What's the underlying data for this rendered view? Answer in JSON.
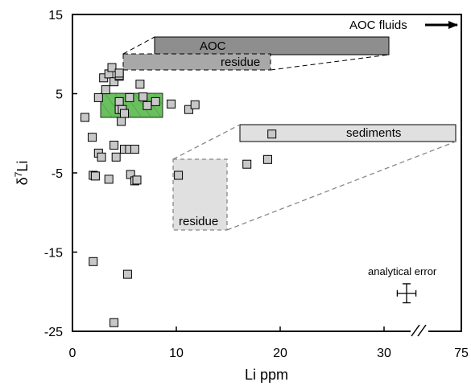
{
  "chart_data": {
    "type": "scatter",
    "xlabel": "Li ppm",
    "ylabel_base": "δ",
    "ylabel_sup": "7",
    "ylabel_tail": "Li",
    "ylim": [
      -25,
      15
    ],
    "x_axis_break": true,
    "x_ticks": [
      0,
      10,
      20,
      30,
      75
    ],
    "y_ticks": [
      -25,
      -15,
      -5,
      5,
      15
    ],
    "series": [
      {
        "marker": "square",
        "color": "#c8c8c8",
        "points": [
          {
            "x": 1.2,
            "y": 2.0
          },
          {
            "x": 2.5,
            "y": 4.5
          },
          {
            "x": 3.2,
            "y": 5.5
          },
          {
            "x": 3.0,
            "y": 7.0
          },
          {
            "x": 3.5,
            "y": 7.5
          },
          {
            "x": 3.8,
            "y": 8.3
          },
          {
            "x": 4.0,
            "y": 6.5
          },
          {
            "x": 4.5,
            "y": 7.2
          },
          {
            "x": 4.5,
            "y": 7.3
          },
          {
            "x": 4.5,
            "y": 7.6
          },
          {
            "x": 4.5,
            "y": 4.0
          },
          {
            "x": 4.5,
            "y": 3.0
          },
          {
            "x": 4.8,
            "y": 3.0
          },
          {
            "x": 4.7,
            "y": 1.5
          },
          {
            "x": 5.0,
            "y": 2.5
          },
          {
            "x": 5.5,
            "y": 4.5
          },
          {
            "x": 6.5,
            "y": 6.2
          },
          {
            "x": 6.8,
            "y": 4.6
          },
          {
            "x": 7.2,
            "y": 3.5
          },
          {
            "x": 8.0,
            "y": 4.0
          },
          {
            "x": 9.5,
            "y": 3.7
          },
          {
            "x": 11.2,
            "y": 3.0
          },
          {
            "x": 11.8,
            "y": 3.6
          },
          {
            "x": 1.9,
            "y": -0.5
          },
          {
            "x": 2.5,
            "y": -2.5
          },
          {
            "x": 4.0,
            "y": -1.5
          },
          {
            "x": 5.0,
            "y": -2.0
          },
          {
            "x": 5.5,
            "y": -2.0
          },
          {
            "x": 4.2,
            "y": -3.0
          },
          {
            "x": 2.8,
            "y": -3.0
          },
          {
            "x": 6.0,
            "y": -2.0
          },
          {
            "x": 2.0,
            "y": -5.3
          },
          {
            "x": 2.2,
            "y": -5.4
          },
          {
            "x": 3.5,
            "y": -5.8
          },
          {
            "x": 5.6,
            "y": -5.2
          },
          {
            "x": 6.0,
            "y": -6.0
          },
          {
            "x": 6.2,
            "y": -5.9
          },
          {
            "x": 2.0,
            "y": -16.2
          },
          {
            "x": 5.3,
            "y": -17.8
          },
          {
            "x": 4.0,
            "y": -23.9
          },
          {
            "x": 10.2,
            "y": -5.3
          },
          {
            "x": 16.8,
            "y": -3.9
          },
          {
            "x": 18.8,
            "y": -3.3
          },
          {
            "x": 19.2,
            "y": -0.1
          }
        ]
      }
    ],
    "annotations": {
      "aoc_fluids": "AOC fluids",
      "aoc": "AOC",
      "residue_top": "residue",
      "sediments": "sediments",
      "residue_bottom": "residue",
      "analytical_error": "analytical error"
    },
    "error_bar": {
      "x": 32.5,
      "y": -20.2,
      "x_err": 0.9,
      "y_err": 1.2
    },
    "colors": {
      "aoc_fill": "#8e8e8e",
      "residue_fill": "#a8a8a8",
      "sediment_fill": "#e0e0e0",
      "green_fill": "#6abf5e"
    }
  }
}
